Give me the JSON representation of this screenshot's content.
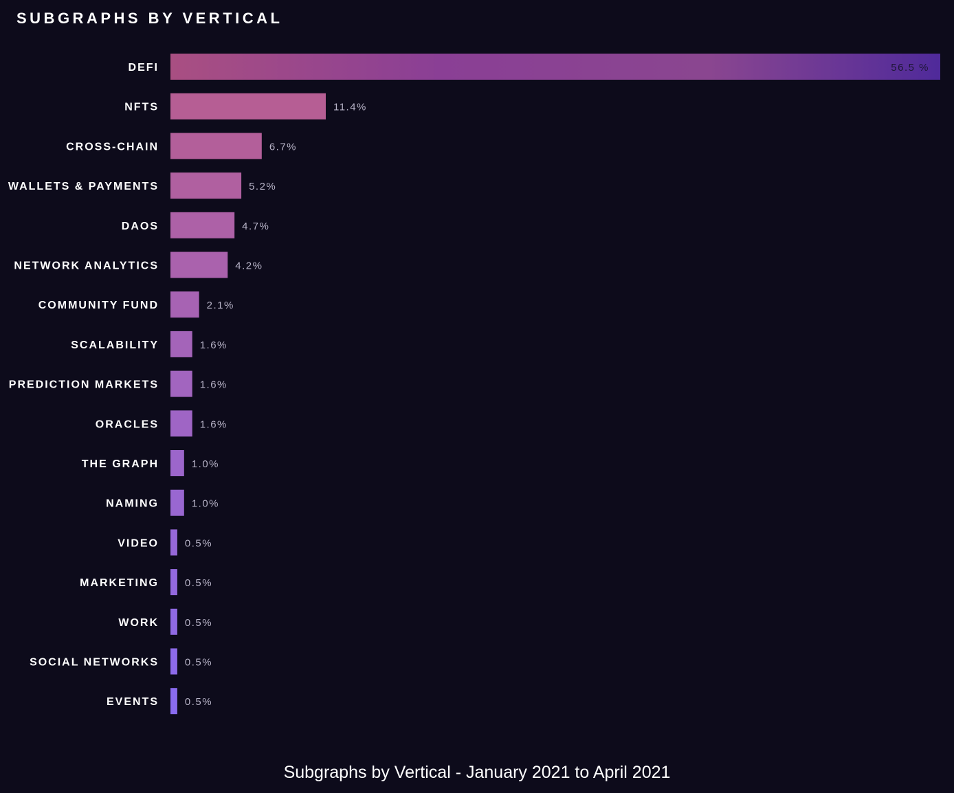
{
  "chart_data": {
    "type": "bar",
    "orientation": "horizontal",
    "title": "SUBGRAPHS BY VERTICAL",
    "categories": [
      "DEFI",
      "NFTS",
      "CROSS-CHAIN",
      "WALLETS & PAYMENTS",
      "DAOS",
      "NETWORK ANALYTICS",
      "COMMUNITY FUND",
      "SCALABILITY",
      "PREDICTION MARKETS",
      "ORACLES",
      "THE GRAPH",
      "NAMING",
      "VIDEO",
      "MARKETING",
      "WORK",
      "SOCIAL NETWORKS",
      "EVENTS"
    ],
    "values": [
      56.5,
      11.4,
      6.7,
      5.2,
      4.7,
      4.2,
      2.1,
      1.6,
      1.6,
      1.6,
      1.0,
      1.0,
      0.5,
      0.5,
      0.5,
      0.5,
      0.5
    ],
    "value_labels": [
      "56.5 %",
      "11.4%",
      "6.7%",
      "5.2%",
      "4.7%",
      "4.2%",
      "2.1%",
      "1.6%",
      "1.6%",
      "1.6%",
      "1.0%",
      "1.0%",
      "0.5%",
      "0.5%",
      "0.5%",
      "0.5%",
      "0.5%"
    ],
    "xlim": [
      0,
      56.5
    ],
    "grid": false,
    "legend": "none",
    "colors": {
      "background": "#0d0b1b",
      "bar_top": "#b95d8e",
      "bar_bottom": "#8a6cf0",
      "defi_gradient_end": "#5a2fa6"
    }
  },
  "caption": "Subgraphs by Vertical - January 2021 to April 2021"
}
